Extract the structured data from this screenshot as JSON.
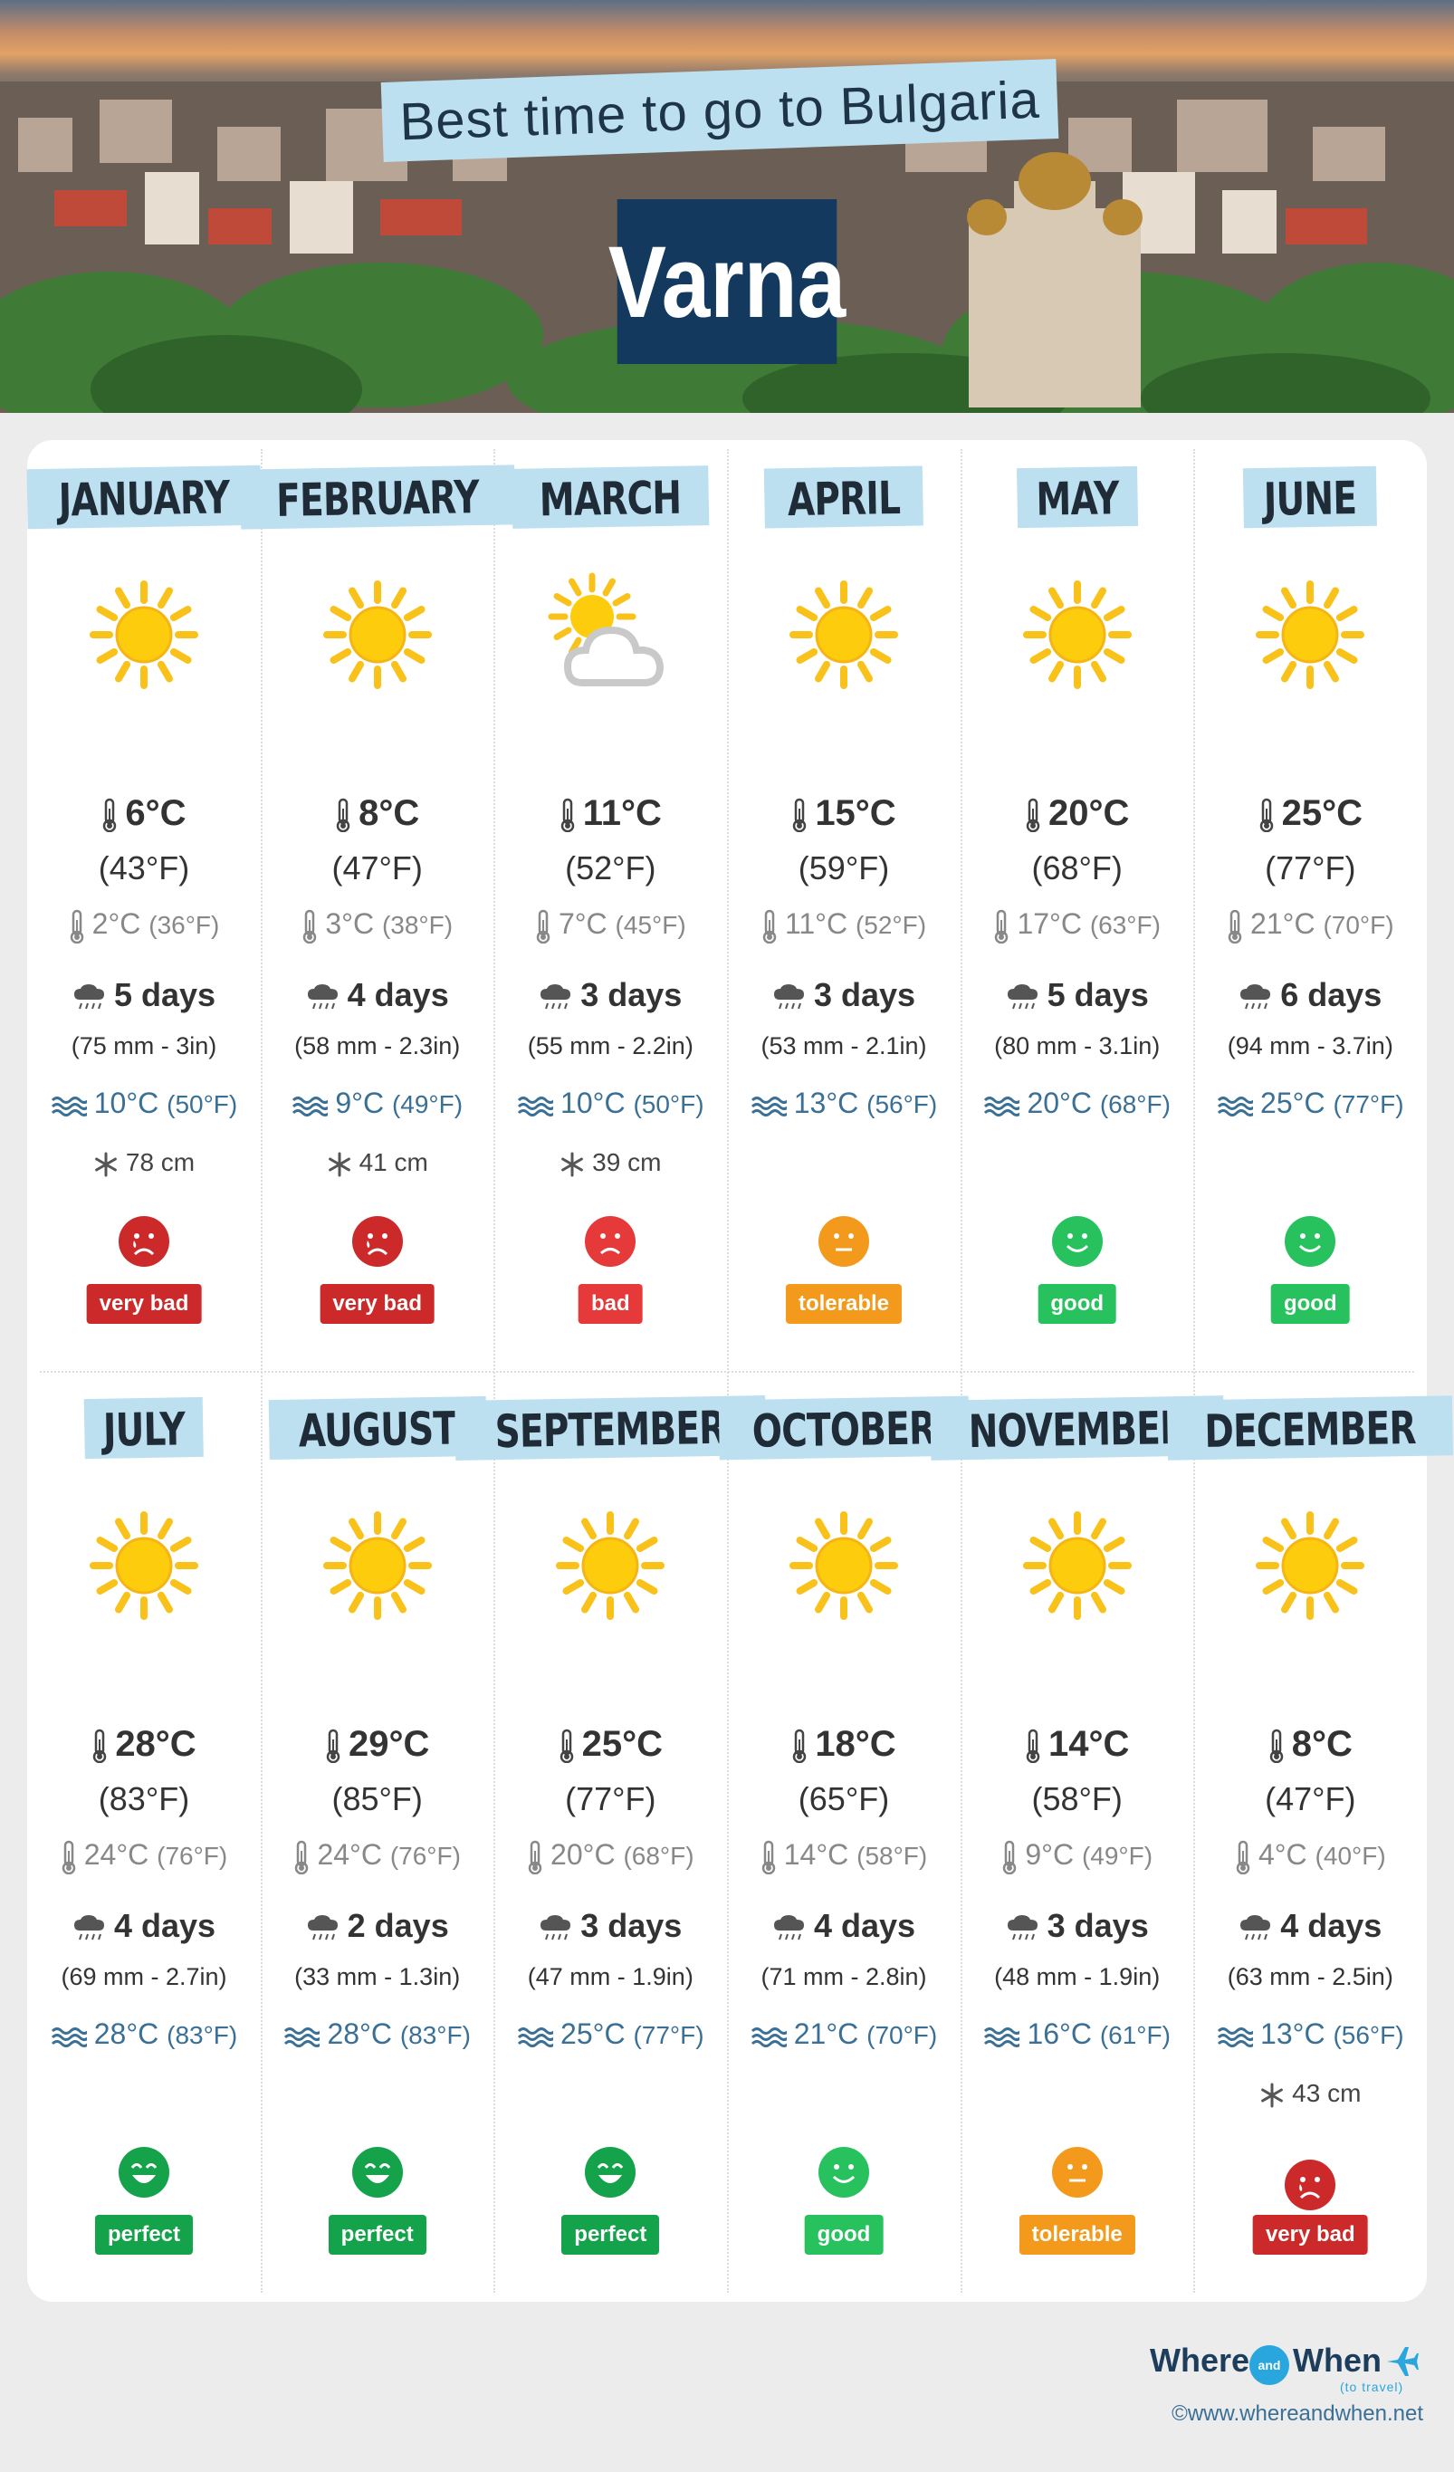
{
  "header": {
    "title": "Best time to go to Bulgaria",
    "city": "Varna"
  },
  "months": [
    {
      "name": "JANUARY",
      "weather": "sun",
      "tmax": "6°C",
      "tmax_f": "(43°F)",
      "tmin": "2°C",
      "tmin_f": "(36°F)",
      "rain_days": "5 days",
      "rain_mm": "(75 mm - 3in)",
      "sea": "10°C",
      "sea_f": "(50°F)",
      "snow": "78 cm",
      "rating": "very bad",
      "rating_color": "#cc2a2a",
      "face": "very-bad"
    },
    {
      "name": "FEBRUARY",
      "weather": "sun",
      "tmax": "8°C",
      "tmax_f": "(47°F)",
      "tmin": "3°C",
      "tmin_f": "(38°F)",
      "rain_days": "4 days",
      "rain_mm": "(58 mm - 2.3in)",
      "sea": "9°C",
      "sea_f": "(49°F)",
      "snow": "41 cm",
      "rating": "very bad",
      "rating_color": "#cc2a2a",
      "face": "very-bad"
    },
    {
      "name": "MARCH",
      "weather": "partly-cloudy",
      "tmax": "11°C",
      "tmax_f": "(52°F)",
      "tmin": "7°C",
      "tmin_f": "(45°F)",
      "rain_days": "3 days",
      "rain_mm": "(55 mm - 2.2in)",
      "sea": "10°C",
      "sea_f": "(50°F)",
      "snow": "39 cm",
      "rating": "bad",
      "rating_color": "#e5393a",
      "face": "bad"
    },
    {
      "name": "APRIL",
      "weather": "sun",
      "tmax": "15°C",
      "tmax_f": "(59°F)",
      "tmin": "11°C",
      "tmin_f": "(52°F)",
      "rain_days": "3 days",
      "rain_mm": "(53 mm - 2.1in)",
      "sea": "13°C",
      "sea_f": "(56°F)",
      "snow": "",
      "rating": "tolerable",
      "rating_color": "#f39a1d",
      "face": "tolerable"
    },
    {
      "name": "MAY",
      "weather": "sun",
      "tmax": "20°C",
      "tmax_f": "(68°F)",
      "tmin": "17°C",
      "tmin_f": "(63°F)",
      "rain_days": "5 days",
      "rain_mm": "(80 mm - 3.1in)",
      "sea": "20°C",
      "sea_f": "(68°F)",
      "snow": "",
      "rating": "good",
      "rating_color": "#27c25e",
      "face": "good"
    },
    {
      "name": "JUNE",
      "weather": "sun",
      "tmax": "25°C",
      "tmax_f": "(77°F)",
      "tmin": "21°C",
      "tmin_f": "(70°F)",
      "rain_days": "6 days",
      "rain_mm": "(94 mm - 3.7in)",
      "sea": "25°C",
      "sea_f": "(77°F)",
      "snow": "",
      "rating": "good",
      "rating_color": "#27c25e",
      "face": "good"
    },
    {
      "name": "JULY",
      "weather": "sun",
      "tmax": "28°C",
      "tmax_f": "(83°F)",
      "tmin": "24°C",
      "tmin_f": "(76°F)",
      "rain_days": "4 days",
      "rain_mm": "(69 mm - 2.7in)",
      "sea": "28°C",
      "sea_f": "(83°F)",
      "snow": "",
      "rating": "perfect",
      "rating_color": "#14a24a",
      "face": "perfect"
    },
    {
      "name": "AUGUST",
      "weather": "sun",
      "tmax": "29°C",
      "tmax_f": "(85°F)",
      "tmin": "24°C",
      "tmin_f": "(76°F)",
      "rain_days": "2 days",
      "rain_mm": "(33 mm - 1.3in)",
      "sea": "28°C",
      "sea_f": "(83°F)",
      "snow": "",
      "rating": "perfect",
      "rating_color": "#14a24a",
      "face": "perfect"
    },
    {
      "name": "SEPTEMBER",
      "weather": "sun",
      "tmax": "25°C",
      "tmax_f": "(77°F)",
      "tmin": "20°C",
      "tmin_f": "(68°F)",
      "rain_days": "3 days",
      "rain_mm": "(47 mm - 1.9in)",
      "sea": "25°C",
      "sea_f": "(77°F)",
      "snow": "",
      "rating": "perfect",
      "rating_color": "#14a24a",
      "face": "perfect"
    },
    {
      "name": "OCTOBER",
      "weather": "sun",
      "tmax": "18°C",
      "tmax_f": "(65°F)",
      "tmin": "14°C",
      "tmin_f": "(58°F)",
      "rain_days": "4 days",
      "rain_mm": "(71 mm - 2.8in)",
      "sea": "21°C",
      "sea_f": "(70°F)",
      "snow": "",
      "rating": "good",
      "rating_color": "#27c25e",
      "face": "good"
    },
    {
      "name": "NOVEMBER",
      "weather": "sun",
      "tmax": "14°C",
      "tmax_f": "(58°F)",
      "tmin": "9°C",
      "tmin_f": "(49°F)",
      "rain_days": "3 days",
      "rain_mm": "(48 mm - 1.9in)",
      "sea": "16°C",
      "sea_f": "(61°F)",
      "snow": "",
      "rating": "tolerable",
      "rating_color": "#f39a1d",
      "face": "tolerable"
    },
    {
      "name": "DECEMBER",
      "weather": "sun",
      "tmax": "8°C",
      "tmax_f": "(47°F)",
      "tmin": "4°C",
      "tmin_f": "(40°F)",
      "rain_days": "4 days",
      "rain_mm": "(63 mm - 2.5in)",
      "sea": "13°C",
      "sea_f": "(56°F)",
      "snow": "43 cm",
      "rating": "very bad",
      "rating_color": "#cc2a2a",
      "face": "very-bad"
    }
  ],
  "footer": {
    "logo_where": "Where",
    "logo_and": "and",
    "logo_when": "When",
    "logo_sub": "(to travel)",
    "copyright": "©www.whereandwhen.net"
  }
}
